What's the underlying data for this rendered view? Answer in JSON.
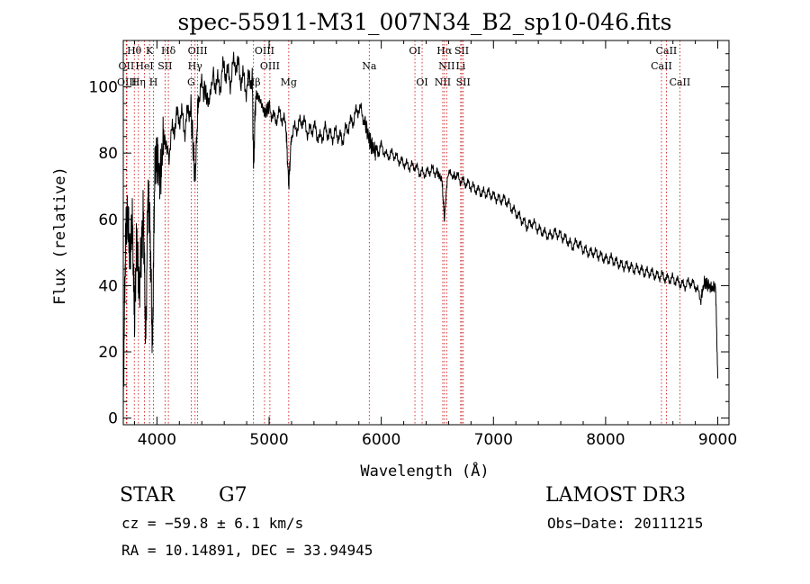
{
  "chart_data": {
    "type": "line",
    "title": "spec-55911-M31_007N34_B2_sp10-046.fits",
    "xlabel": "Wavelength (Å)",
    "ylabel": "Flux (relative)",
    "xlim": [
      3700,
      9100
    ],
    "ylim": [
      -2,
      114
    ],
    "xticks": [
      4000,
      5000,
      6000,
      7000,
      8000,
      9000
    ],
    "yticks": [
      0,
      20,
      40,
      60,
      80,
      100
    ],
    "series": [
      {
        "name": "flux",
        "color": "#000000",
        "points": [
          [
            3700,
            5
          ],
          [
            3720,
            55
          ],
          [
            3740,
            62
          ],
          [
            3760,
            48
          ],
          [
            3780,
            60
          ],
          [
            3800,
            30
          ],
          [
            3820,
            55
          ],
          [
            3840,
            38
          ],
          [
            3860,
            50
          ],
          [
            3880,
            62
          ],
          [
            3900,
            22
          ],
          [
            3920,
            70
          ],
          [
            3940,
            55
          ],
          [
            3960,
            20
          ],
          [
            3980,
            75
          ],
          [
            4000,
            80
          ],
          [
            4030,
            72
          ],
          [
            4060,
            85
          ],
          [
            4100,
            80
          ],
          [
            4150,
            88
          ],
          [
            4200,
            92
          ],
          [
            4250,
            88
          ],
          [
            4300,
            95
          ],
          [
            4340,
            72
          ],
          [
            4370,
            98
          ],
          [
            4420,
            100
          ],
          [
            4460,
            95
          ],
          [
            4500,
            103
          ],
          [
            4550,
            100
          ],
          [
            4600,
            106
          ],
          [
            4650,
            102
          ],
          [
            4700,
            108
          ],
          [
            4750,
            103
          ],
          [
            4800,
            100
          ],
          [
            4850,
            104
          ],
          [
            4861,
            75
          ],
          [
            4880,
            98
          ],
          [
            4920,
            96
          ],
          [
            4960,
            92
          ],
          [
            5000,
            94
          ],
          [
            5050,
            90
          ],
          [
            5100,
            92
          ],
          [
            5150,
            88
          ],
          [
            5175,
            70
          ],
          [
            5200,
            86
          ],
          [
            5250,
            88
          ],
          [
            5300,
            90
          ],
          [
            5350,
            86
          ],
          [
            5400,
            88
          ],
          [
            5450,
            84
          ],
          [
            5500,
            87
          ],
          [
            5550,
            85
          ],
          [
            5600,
            86
          ],
          [
            5650,
            84
          ],
          [
            5700,
            88
          ],
          [
            5750,
            90
          ],
          [
            5800,
            94
          ],
          [
            5850,
            90
          ],
          [
            5892,
            84
          ],
          [
            5920,
            82
          ],
          [
            5950,
            80
          ],
          [
            6000,
            82
          ],
          [
            6050,
            79
          ],
          [
            6100,
            80
          ],
          [
            6150,
            78
          ],
          [
            6200,
            77
          ],
          [
            6250,
            76
          ],
          [
            6300,
            76
          ],
          [
            6350,
            74
          ],
          [
            6400,
            74
          ],
          [
            6450,
            75
          ],
          [
            6500,
            74
          ],
          [
            6540,
            72
          ],
          [
            6563,
            60
          ],
          [
            6590,
            73
          ],
          [
            6650,
            74
          ],
          [
            6700,
            72
          ],
          [
            6750,
            71
          ],
          [
            6800,
            70
          ],
          [
            6850,
            69
          ],
          [
            6900,
            68
          ],
          [
            6950,
            68
          ],
          [
            7000,
            67
          ],
          [
            7050,
            66
          ],
          [
            7100,
            66
          ],
          [
            7150,
            64
          ],
          [
            7200,
            62
          ],
          [
            7250,
            60
          ],
          [
            7300,
            58
          ],
          [
            7350,
            59
          ],
          [
            7400,
            57
          ],
          [
            7450,
            56
          ],
          [
            7500,
            55
          ],
          [
            7550,
            56
          ],
          [
            7600,
            55
          ],
          [
            7650,
            54
          ],
          [
            7700,
            52
          ],
          [
            7750,
            53
          ],
          [
            7800,
            51
          ],
          [
            7850,
            50
          ],
          [
            7900,
            50
          ],
          [
            7950,
            49
          ],
          [
            8000,
            48
          ],
          [
            8050,
            48
          ],
          [
            8100,
            47
          ],
          [
            8150,
            46
          ],
          [
            8200,
            46
          ],
          [
            8250,
            45
          ],
          [
            8300,
            45
          ],
          [
            8350,
            44
          ],
          [
            8400,
            44
          ],
          [
            8450,
            43
          ],
          [
            8500,
            43
          ],
          [
            8550,
            42
          ],
          [
            8600,
            42
          ],
          [
            8650,
            41
          ],
          [
            8700,
            40
          ],
          [
            8750,
            41
          ],
          [
            8800,
            40
          ],
          [
            8850,
            36
          ],
          [
            8880,
            41
          ],
          [
            8920,
            40
          ],
          [
            8950,
            39
          ],
          [
            8980,
            40
          ],
          [
            9000,
            12
          ]
        ]
      }
    ],
    "spectral_lines": [
      {
        "name": "Hθ",
        "x": 3798,
        "row": 0
      },
      {
        "name": "K",
        "x": 3934,
        "row": 0
      },
      {
        "name": "Hδ",
        "x": 4102,
        "row": 0
      },
      {
        "name": "OIII",
        "x": 4363,
        "row": 0
      },
      {
        "name": "OIII",
        "x": 4959,
        "row": 0
      },
      {
        "name": "OI",
        "x": 6300,
        "row": 0
      },
      {
        "name": "Hα",
        "x": 6563,
        "row": 0
      },
      {
        "name": "SII",
        "x": 6717,
        "row": 0
      },
      {
        "name": "CaII",
        "x": 8542,
        "row": 0
      },
      {
        "name": "OII",
        "x": 3727,
        "row": 1
      },
      {
        "name": "HeI",
        "x": 3889,
        "row": 1
      },
      {
        "name": "SII",
        "x": 4072,
        "row": 1
      },
      {
        "name": "Hγ",
        "x": 4340,
        "row": 1
      },
      {
        "name": "OIII",
        "x": 5007,
        "row": 1
      },
      {
        "name": "Na",
        "x": 5893,
        "row": 1
      },
      {
        "name": "NII",
        "x": 6583,
        "row": 1
      },
      {
        "name": "Li",
        "x": 6708,
        "row": 1
      },
      {
        "name": "CaII",
        "x": 8498,
        "row": 1
      },
      {
        "name": "OIII",
        "x": 3732,
        "row": 2
      },
      {
        "name": "Hη",
        "x": 3835,
        "row": 2
      },
      {
        "name": "H",
        "x": 3969,
        "row": 2
      },
      {
        "name": "G",
        "x": 4305,
        "row": 2
      },
      {
        "name": "Hβ",
        "x": 4861,
        "row": 2
      },
      {
        "name": "Mg",
        "x": 5175,
        "row": 2
      },
      {
        "name": "OI",
        "x": 6364,
        "row": 2
      },
      {
        "name": "NII",
        "x": 6548,
        "row": 2
      },
      {
        "name": "SII",
        "x": 6731,
        "row": 2
      },
      {
        "name": "CaII",
        "x": 8662,
        "row": 2
      }
    ],
    "line_color": "#cc0000",
    "grid": false,
    "legend": "none"
  },
  "info": {
    "object_class": "STAR",
    "subclass": "G7",
    "survey": "LAMOST DR3",
    "cz": "cz = −59.8 ± 6.1 km/s",
    "obs_date": "Obs−Date: 20111215",
    "coords": "RA =  10.14891, DEC =  33.94945"
  }
}
